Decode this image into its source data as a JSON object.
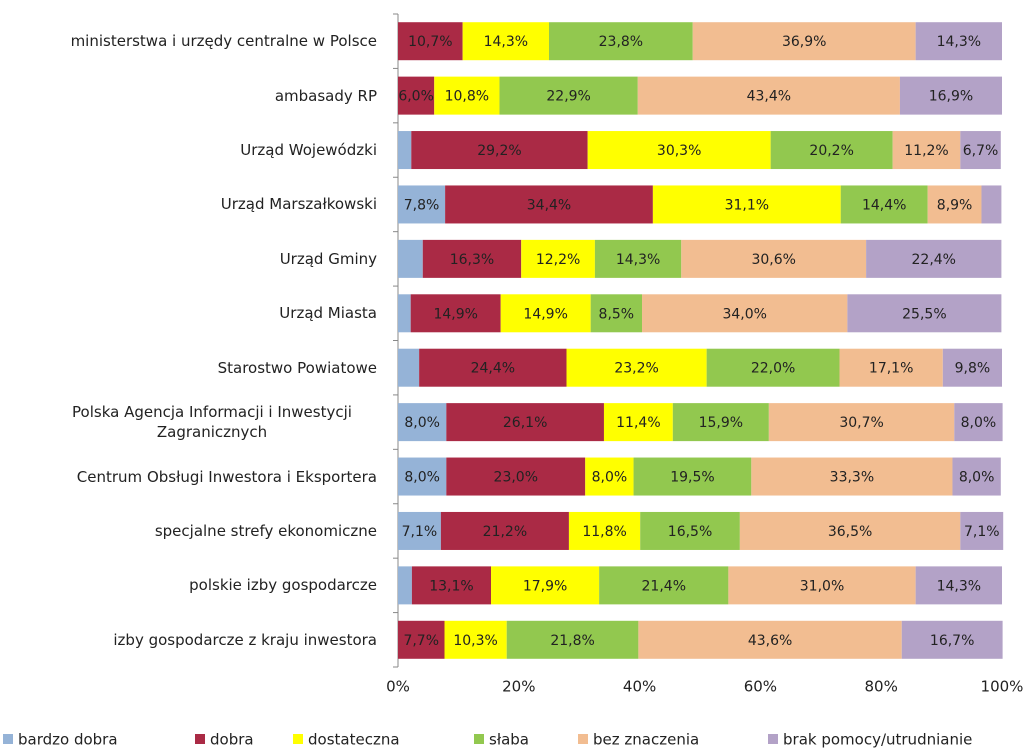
{
  "chart_data": {
    "type": "stacked-bar-horizontal",
    "categories": [
      "ministerstwa i urzędy centralne w Polsce",
      "ambasady RP",
      "Urząd Wojewódzki",
      "Urząd Marszałkowski",
      "Urząd Gminy",
      "Urząd Miasta",
      "Starostwo Powiatowe",
      "Polska Agencja Informacji i Inwestycji Zagranicznych",
      "Centrum Obsługi Inwestora i Eksportera",
      "specjalne strefy ekonomiczne",
      "polskie izby gospodarcze",
      "izby gospodarcze z kraju inwestora"
    ],
    "series": [
      {
        "name": "bardzo dobra",
        "color": "#95b3d7",
        "values": [
          0,
          0,
          2.2,
          7.8,
          4.1,
          2.1,
          3.5,
          8.0,
          8.0,
          7.1,
          2.3,
          0
        ],
        "value_labels": [
          null,
          null,
          null,
          "7,8%",
          null,
          null,
          null,
          "8,0%",
          "8,0%",
          "7,1%",
          null,
          null
        ]
      },
      {
        "name": "dobra",
        "color": "#aa2a45",
        "values": [
          10.7,
          6.0,
          29.2,
          34.4,
          16.3,
          14.9,
          24.4,
          26.1,
          23.0,
          21.2,
          13.1,
          7.7
        ],
        "value_labels": [
          "10,7%",
          "6,0%",
          "29,2%",
          "34,4%",
          "16,3%",
          "14,9%",
          "24,4%",
          "26,1%",
          "23,0%",
          "21,2%",
          "13,1%",
          "7,7%"
        ]
      },
      {
        "name": "dostateczna",
        "color": "#ffff00",
        "values": [
          14.3,
          10.8,
          30.3,
          31.1,
          12.2,
          14.9,
          23.2,
          11.4,
          8.0,
          11.8,
          17.9,
          10.3
        ],
        "value_labels": [
          "14,3%",
          "10,8%",
          "30,3%",
          "31,1%",
          "12,2%",
          "14,9%",
          "23,2%",
          "11,4%",
          "8,0%",
          "11,8%",
          "17,9%",
          "10,3%"
        ]
      },
      {
        "name": "słaba",
        "color": "#92c84f",
        "values": [
          23.8,
          22.9,
          20.2,
          14.4,
          14.3,
          8.5,
          22.0,
          15.9,
          19.5,
          16.5,
          21.4,
          21.8
        ],
        "value_labels": [
          "23,8%",
          "22,9%",
          "20,2%",
          "14,4%",
          "14,3%",
          "8,5%",
          "22,0%",
          "15,9%",
          "19,5%",
          "16,5%",
          "21,4%",
          "21,8%"
        ]
      },
      {
        "name": "bez znaczenia",
        "color": "#f2bd91",
        "values": [
          36.9,
          43.4,
          11.2,
          8.9,
          30.6,
          34.0,
          17.1,
          30.7,
          33.3,
          36.5,
          31.0,
          43.6
        ],
        "value_labels": [
          "36,9%",
          "43,4%",
          "11,2%",
          "8,9%",
          "30,6%",
          "34,0%",
          "17,1%",
          "30,7%",
          "33,3%",
          "36,5%",
          "31,0%",
          "43,6%"
        ]
      },
      {
        "name": "brak pomocy/utrudnianie",
        "color": "#b3a2c7",
        "values": [
          14.3,
          16.9,
          6.7,
          3.3,
          22.4,
          25.5,
          9.8,
          8.0,
          8.0,
          7.1,
          14.3,
          16.7
        ],
        "value_labels": [
          "14,3%",
          "16,9%",
          "6,7%",
          null,
          "22,4%",
          "25,5%",
          "9,8%",
          "8,0%",
          "8,0%",
          "7,1%",
          "14,3%",
          "16,7%"
        ]
      }
    ],
    "xlim": [
      0,
      100
    ],
    "xticks": [
      {
        "value": 0,
        "label": "0%"
      },
      {
        "value": 20,
        "label": "20%"
      },
      {
        "value": 40,
        "label": "40%"
      },
      {
        "value": 60,
        "label": "60%"
      },
      {
        "value": 80,
        "label": "80%"
      },
      {
        "value": 100,
        "label": "100%"
      }
    ],
    "legend": "bottom"
  }
}
